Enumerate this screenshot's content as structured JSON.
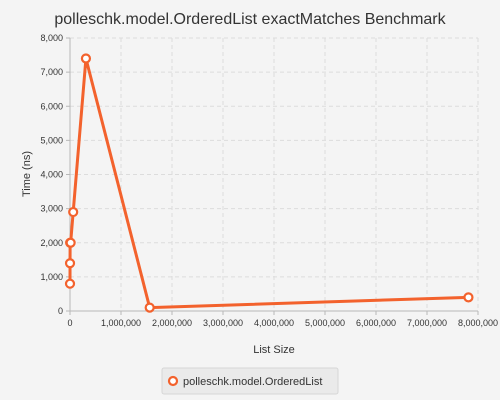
{
  "chart_data": {
    "type": "line",
    "title": "polleschk.model.OrderedList exactMatches Benchmark",
    "xlabel": "List Size",
    "ylabel": "Time (ns)",
    "xlim": [
      0,
      8000000
    ],
    "ylim": [
      0,
      8000
    ],
    "x_ticks": [
      0,
      1000000,
      2000000,
      3000000,
      4000000,
      5000000,
      6000000,
      7000000,
      8000000
    ],
    "x_tick_labels": [
      "0",
      "1,000,000",
      "2,000,000",
      "3,000,000",
      "4,000,000",
      "5,000,000",
      "6,000,000",
      "7,000,000",
      "8,000,000"
    ],
    "y_ticks": [
      0,
      1000,
      2000,
      3000,
      4000,
      5000,
      6000,
      7000,
      8000
    ],
    "y_tick_labels": [
      "0",
      "1,000",
      "2,000",
      "3,000",
      "4,000",
      "5,000",
      "6,000",
      "7,000",
      "8,000"
    ],
    "grid": true,
    "legend_position": "bottom-center",
    "series": [
      {
        "name": "polleschk.model.OrderedList",
        "color": "#f3622d",
        "x": [
          100,
          500,
          2500,
          12500,
          62500,
          312500,
          1562500,
          7812500
        ],
        "y": [
          800,
          1400,
          2000,
          2000,
          2900,
          7400,
          100,
          400
        ]
      }
    ]
  }
}
